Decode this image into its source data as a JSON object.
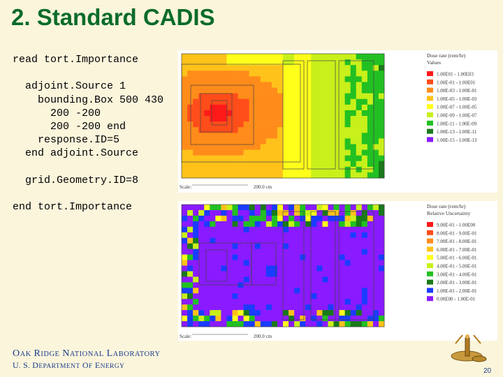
{
  "slide": {
    "title": "2. Standard CADIS",
    "page_number": "20"
  },
  "code": {
    "lines": [
      "read tort.Importance",
      "",
      "  adjoint.Source 1",
      "    bounding.Box 500 430",
      "      200 -200",
      "      200 -200 end",
      "    response.ID=5",
      "  end adjoint.Source",
      "",
      "  grid.Geometry.ID=8",
      "",
      "end tort.Importance"
    ]
  },
  "footer": {
    "org": "Oak Ridge National Laboratory",
    "dept": "U. S. Department of Energy"
  },
  "top_plot": {
    "legend_title": "Dose rate (rem/hr)",
    "legend_subtitle": "Values",
    "scale_label": "Scale:",
    "scale_value": "200.0 cm",
    "legend": [
      {
        "label": "1.00E01 - 1.00E03",
        "color": "#ff1a1a"
      },
      {
        "label": "1.00E-01 - 1.00E01",
        "color": "#ff4d1a"
      },
      {
        "label": "1.00E-03 - 1.00E-01",
        "color": "#ff8c1a"
      },
      {
        "label": "1.00E-05 - 1.00E-03",
        "color": "#ffc21a"
      },
      {
        "label": "1.00E-07 - 1.00E-05",
        "color": "#ffff1a"
      },
      {
        "label": "1.00E-09 - 1.00E-07",
        "color": "#c8f01a"
      },
      {
        "label": "1.00E-11 - 1.00E-09",
        "color": "#22c022"
      },
      {
        "label": "1.00E-13 - 1.00E-11",
        "color": "#1a7a1a"
      },
      {
        "label": "1.00E-15 - 1.00E-13",
        "color": "#8a1aff"
      }
    ]
  },
  "bottom_plot": {
    "legend_title": "Dose rate (rem/hr)",
    "legend_subtitle": "Relative Uncertainty",
    "scale_label": "Scale:",
    "scale_value": "200.0 cm",
    "legend": [
      {
        "label": "9.00E-01 - 1.00E00",
        "color": "#ff1a1a"
      },
      {
        "label": "8.00E-01 - 9.00E-01",
        "color": "#ff4d1a"
      },
      {
        "label": "7.00E-01 - 8.00E-01",
        "color": "#ff8c1a"
      },
      {
        "label": "6.00E-01 - 7.00E-01",
        "color": "#ffc21a"
      },
      {
        "label": "5.00E-01 - 6.00E-01",
        "color": "#ffff1a"
      },
      {
        "label": "4.00E-01 - 5.00E-01",
        "color": "#c8f01a"
      },
      {
        "label": "3.00E-01 - 4.00E-01",
        "color": "#22c022"
      },
      {
        "label": "2.00E-01 - 3.00E-01",
        "color": "#1a7a1a"
      },
      {
        "label": "1.00E-01 - 2.00E-01",
        "color": "#1a3cff"
      },
      {
        "label": "0.00E00 - 1.00E-01",
        "color": "#8a1aff"
      }
    ]
  }
}
